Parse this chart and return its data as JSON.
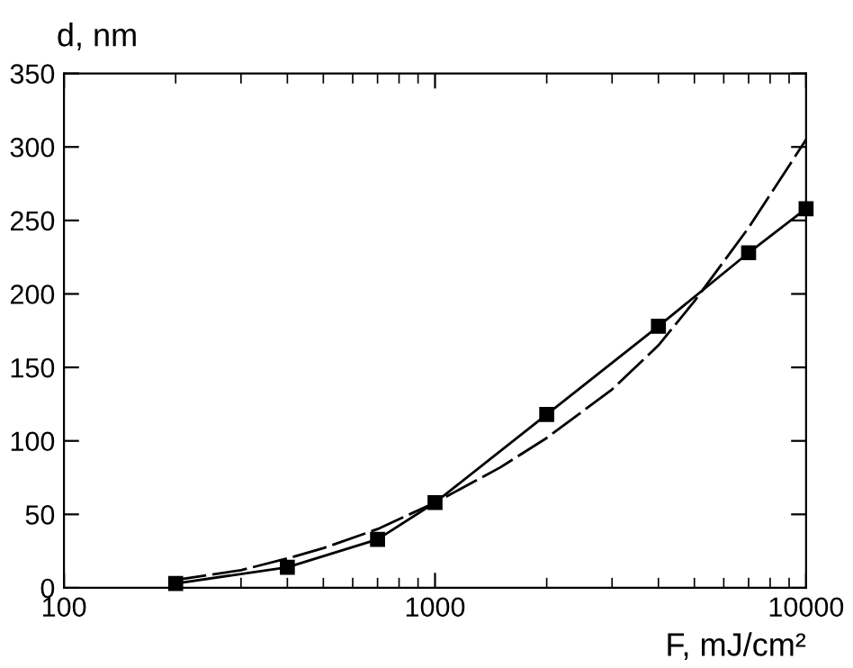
{
  "chart_data": {
    "type": "line",
    "xlabel": "F, mJ/cm²",
    "ylabel": "d, nm",
    "log": "x",
    "xlim": [
      100,
      10000
    ],
    "xticks": [
      100,
      1000,
      10000
    ],
    "ylim": [
      0,
      350
    ],
    "yticks": [
      0,
      50,
      100,
      150,
      200,
      250,
      300,
      350
    ],
    "grid": false,
    "series": [
      {
        "color": "#000000",
        "marker": "square",
        "line_style": "solid",
        "x": [
          200,
          400,
          700,
          1000,
          2000,
          4000,
          7000,
          10000
        ],
        "values": [
          3,
          14,
          33,
          58,
          118,
          178,
          228,
          258
        ]
      },
      {
        "color": "#000000",
        "marker": "none",
        "line_style": "dashed",
        "x": [
          195,
          300,
          400,
          500,
          700,
          1000,
          1500,
          2000,
          3000,
          4000,
          5000,
          7000,
          10000
        ],
        "values": [
          5,
          12,
          20,
          27,
          40,
          58,
          82,
          102,
          135,
          165,
          195,
          245,
          305
        ]
      }
    ]
  }
}
